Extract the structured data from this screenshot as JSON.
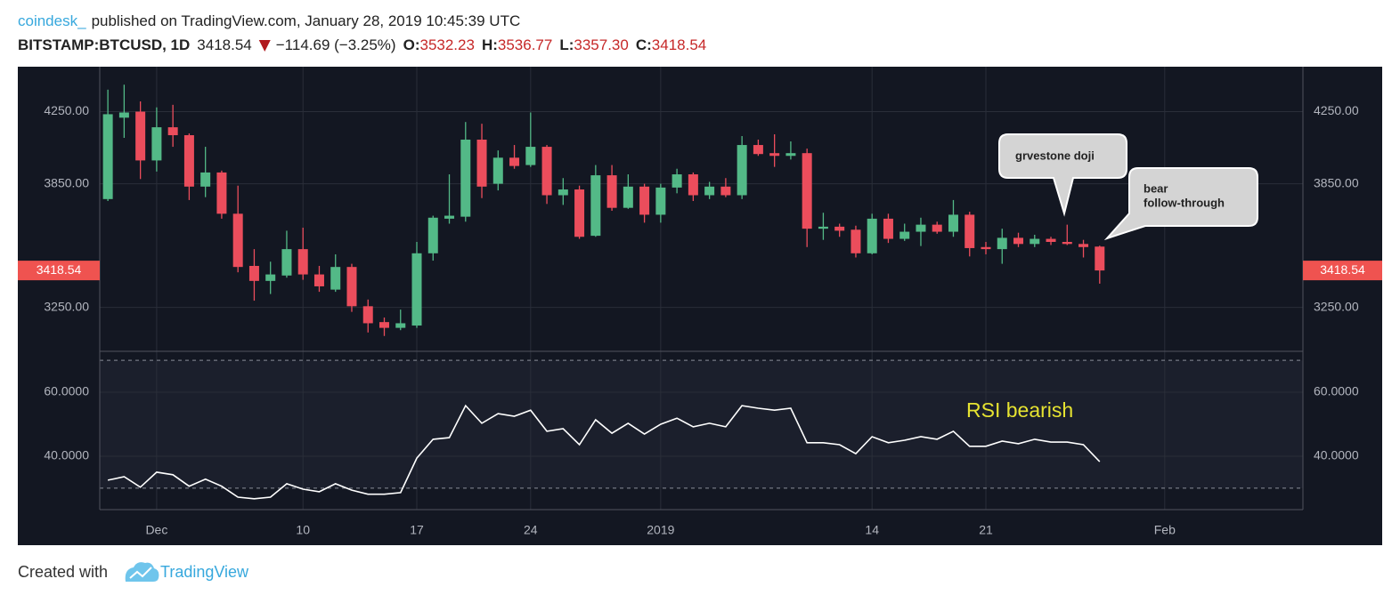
{
  "header": {
    "author": "coindesk_",
    "published": "published on TradingView.com, January 28, 2019 10:45:39 UTC",
    "symbol": "BITSTAMP:BTCUSD, 1D",
    "last": "3418.54",
    "change": "−114.69 (−3.25%)",
    "o_key": "O:",
    "o": "3532.23",
    "h_key": "H:",
    "h": "3536.77",
    "l_key": "L:",
    "l": "3357.30",
    "c_key": "C:",
    "c": "3418.54"
  },
  "chart_data": {
    "type": "candlestick",
    "log_scale": true,
    "grid": true,
    "up_color": "#53b987",
    "down_color": "#eb4d5c",
    "categories": [
      null,
      null,
      null,
      "Dec",
      null,
      null,
      null,
      null,
      null,
      null,
      null,
      null,
      "10",
      null,
      null,
      null,
      null,
      null,
      null,
      "17",
      null,
      null,
      null,
      null,
      null,
      null,
      "24",
      null,
      null,
      null,
      null,
      null,
      null,
      null,
      "2019",
      null,
      null,
      null,
      null,
      null,
      null,
      null,
      null,
      null,
      null,
      null,
      null,
      "14",
      null,
      null,
      null,
      null,
      null,
      null,
      "21",
      null,
      null,
      null,
      null,
      null,
      null,
      null,
      null,
      null,
      null,
      "Feb",
      null,
      null,
      null,
      null,
      null,
      null,
      null,
      null
    ],
    "open": [
      3770,
      4215,
      4250,
      3975,
      4160,
      4115,
      3835,
      3910,
      3695,
      3440,
      3370,
      3395,
      3520,
      3400,
      3330,
      3435,
      3255,
      3185,
      3160,
      3170,
      3500,
      3670,
      3680,
      4090,
      3850,
      3990,
      3950,
      4050,
      3790,
      3820,
      3585,
      3895,
      3725,
      3835,
      3690,
      3830,
      3900,
      3790,
      3835,
      3790,
      4060,
      4015,
      4000,
      4015,
      3620,
      3630,
      3615,
      3500,
      3670,
      3570,
      3605,
      3640,
      3605,
      3690,
      3530,
      3520,
      3575,
      3545,
      3570,
      3555,
      3545,
      3532.23,
      null,
      null,
      null,
      null,
      null,
      null,
      null,
      null,
      null,
      null,
      null,
      null
    ],
    "high": [
      4380,
      4410,
      4310,
      4275,
      4290,
      4125,
      4050,
      3920,
      3840,
      3520,
      3460,
      3610,
      3625,
      3440,
      3495,
      3450,
      3285,
      3205,
      3240,
      3555,
      3685,
      3900,
      4190,
      4180,
      4030,
      4060,
      4245,
      4060,
      3880,
      3840,
      3950,
      3950,
      3900,
      3850,
      3850,
      3930,
      3910,
      3860,
      3880,
      4110,
      4090,
      4120,
      4080,
      4040,
      3700,
      3645,
      3635,
      3695,
      3695,
      3645,
      3675,
      3655,
      3765,
      3705,
      3555,
      3620,
      3600,
      3590,
      3580,
      3640,
      3565,
      3536.77,
      null,
      null,
      null,
      null,
      null,
      null,
      null,
      null,
      null,
      null,
      null,
      null
    ],
    "low": [
      3760,
      4100,
      3875,
      3915,
      4050,
      3765,
      3780,
      3670,
      3410,
      3280,
      3310,
      3385,
      3375,
      3320,
      3320,
      3230,
      3140,
      3125,
      3150,
      3160,
      3465,
      3645,
      3655,
      3775,
      3815,
      3930,
      3940,
      3745,
      3740,
      3570,
      3580,
      3710,
      3720,
      3650,
      3650,
      3800,
      3760,
      3770,
      3780,
      3770,
      4000,
      3940,
      3980,
      3530,
      3565,
      3580,
      3480,
      3495,
      3550,
      3560,
      3535,
      3595,
      3580,
      3485,
      3495,
      3450,
      3530,
      3530,
      3540,
      3540,
      3480,
      3357.3,
      null,
      null,
      null,
      null,
      null,
      null,
      null,
      null,
      null,
      null,
      null,
      null
    ],
    "close": [
      4235,
      4245,
      3975,
      4160,
      4115,
      3835,
      3910,
      3695,
      3435,
      3370,
      3400,
      3520,
      3400,
      3345,
      3435,
      3255,
      3180,
      3160,
      3180,
      3500,
      3675,
      3685,
      4090,
      3835,
      3990,
      3945,
      4050,
      3790,
      3820,
      3580,
      3895,
      3725,
      3835,
      3690,
      3830,
      3900,
      3790,
      3835,
      3790,
      4060,
      4010,
      4000,
      4015,
      3620,
      3630,
      3610,
      3500,
      3670,
      3570,
      3605,
      3640,
      3605,
      3690,
      3525,
      3520,
      3575,
      3545,
      3570,
      3555,
      3545,
      3530,
      3418.54,
      null,
      null,
      null,
      null,
      null,
      null,
      null,
      null,
      null,
      null,
      null,
      null
    ],
    "ylim": [
      3060,
      4520
    ],
    "yticks": [
      {
        "value": 3250,
        "label": "3250.00"
      },
      {
        "value": 3850,
        "label": "3850.00"
      },
      {
        "value": 4250,
        "label": "4250.00"
      }
    ],
    "rsi": {
      "color": "#ffffff",
      "levels": [
        70,
        30
      ],
      "ylim": [
        23.3,
        72.8
      ],
      "yticks": [
        {
          "value": 40,
          "label": "40.0000"
        },
        {
          "value": 60,
          "label": "60.0000"
        }
      ],
      "values": [
        32.5,
        33.6,
        30.3,
        35,
        34.2,
        30.6,
        32.8,
        30.6,
        27.2,
        26.7,
        27.2,
        31.4,
        29.7,
        28.9,
        31.4,
        29.4,
        28.1,
        28.1,
        28.6,
        39.4,
        45.3,
        45.8,
        55.8,
        50.3,
        53.3,
        52.5,
        54.4,
        47.8,
        48.6,
        43.6,
        51.4,
        47.2,
        50.3,
        46.9,
        50,
        51.9,
        49.2,
        50.3,
        49.2,
        55.8,
        55,
        54.4,
        55,
        44.2,
        44.2,
        43.6,
        40.8,
        46.1,
        44.2,
        45,
        46.1,
        45.3,
        47.8,
        43.1,
        43.1,
        44.7,
        43.9,
        45.3,
        44.4,
        44.4,
        43.6,
        38.3,
        null,
        null,
        null,
        null,
        null,
        null,
        null,
        null,
        null,
        null,
        null,
        null
      ]
    },
    "annotations": [
      {
        "lines": [
          "grvestone doji"
        ]
      },
      {
        "lines": [
          "bear",
          "follow-through"
        ]
      },
      {
        "lines": [
          "RSI bearish"
        ]
      }
    ]
  },
  "footer": {
    "created": "Created with",
    "brand": "TradingView"
  }
}
